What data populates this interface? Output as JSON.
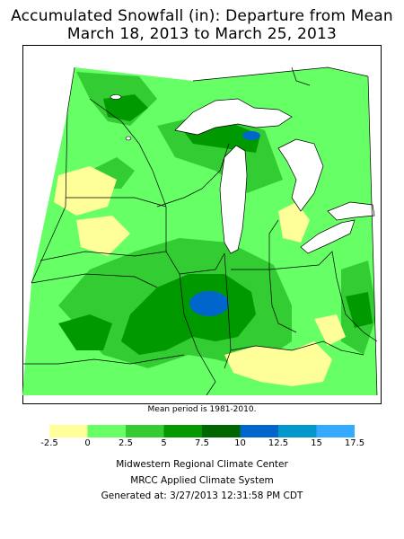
{
  "title_line1": "Accumulated Snowfall (in): Departure from Mean",
  "title_line2": "March 18, 2013 to March 25, 2013",
  "note": "Mean period is 1981-2010.",
  "legend": {
    "labels": [
      "-2.5",
      "0",
      "2.5",
      "5",
      "7.5",
      "10",
      "12.5",
      "15",
      "17.5"
    ],
    "colors": [
      "#ffff99",
      "#66ff66",
      "#33cc33",
      "#009900",
      "#006600",
      "#0066cc",
      "#0099cc",
      "#33aaff"
    ]
  },
  "colors": {
    "water": "#ffffff",
    "light_green": "#66ff66",
    "medium_green": "#33cc33",
    "dark_green": "#009900",
    "yellow": "#ffff99",
    "blue": "#0066cc"
  },
  "credits": {
    "line1": "Midwestern Regional Climate Center",
    "line2": "MRCC Applied Climate System",
    "line3": "Generated at: 3/27/2013 12:31:58 PM CDT"
  }
}
